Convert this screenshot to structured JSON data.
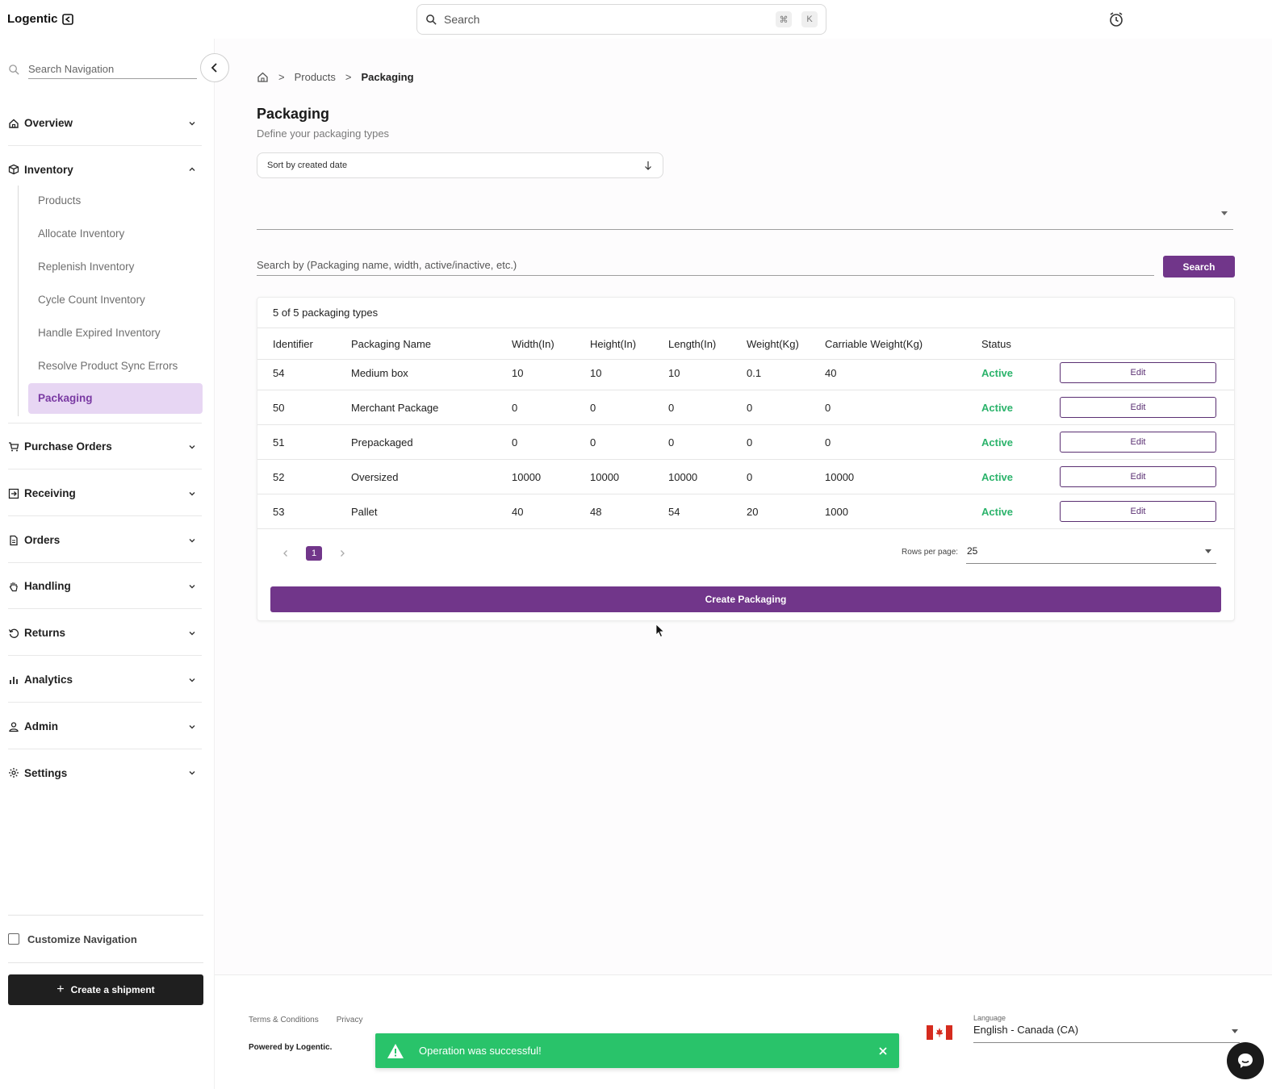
{
  "app": {
    "logo_text": "Logentic"
  },
  "topbar": {
    "search_placeholder": "Search",
    "shortcut_cmd": "⌘",
    "shortcut_key": "K"
  },
  "sidebar": {
    "search_placeholder": "Search Navigation",
    "sections": [
      {
        "label": "Overview",
        "icon": "home-icon",
        "expanded": false
      },
      {
        "label": "Inventory",
        "icon": "box-icon",
        "expanded": true
      },
      {
        "label": "Purchase Orders",
        "icon": "cart-icon",
        "expanded": false
      },
      {
        "label": "Receiving",
        "icon": "receiving-icon",
        "expanded": false
      },
      {
        "label": "Orders",
        "icon": "document-icon",
        "expanded": false
      },
      {
        "label": "Handling",
        "icon": "hand-icon",
        "expanded": false
      },
      {
        "label": "Returns",
        "icon": "return-icon",
        "expanded": false
      },
      {
        "label": "Analytics",
        "icon": "bar-chart-icon",
        "expanded": false
      },
      {
        "label": "Admin",
        "icon": "user-icon",
        "expanded": false
      },
      {
        "label": "Settings",
        "icon": "gear-icon",
        "expanded": false
      }
    ],
    "inventory_items": [
      {
        "label": "Products",
        "active": false
      },
      {
        "label": "Allocate Inventory",
        "active": false
      },
      {
        "label": "Replenish Inventory",
        "active": false
      },
      {
        "label": "Cycle Count Inventory",
        "active": false
      },
      {
        "label": "Handle Expired Inventory",
        "active": false
      },
      {
        "label": "Resolve Product Sync Errors",
        "active": false
      },
      {
        "label": "Packaging",
        "active": true
      }
    ],
    "customize_label": "Customize Navigation",
    "create_shipment_label": "Create a shipment"
  },
  "breadcrumb": {
    "items": [
      "Products",
      "Packaging"
    ],
    "separator": ">"
  },
  "page": {
    "title": "Packaging",
    "subtitle": "Define your packaging types",
    "sort_label": "Sort by created date",
    "search_placeholder": "Search by (Packaging name, width, active/inactive, etc.)",
    "search_button": "Search"
  },
  "table": {
    "count_text": "5 of 5 packaging types",
    "columns": [
      "Identifier",
      "Packaging Name",
      "Width(In)",
      "Height(In)",
      "Length(In)",
      "Weight(Kg)",
      "Carriable Weight(Kg)",
      "Status"
    ],
    "rows": [
      {
        "id": "54",
        "name": "Medium box",
        "width": "10",
        "height": "10",
        "length": "10",
        "weight": "0.1",
        "carriable": "40",
        "status": "Active"
      },
      {
        "id": "50",
        "name": "Merchant Package",
        "width": "0",
        "height": "0",
        "length": "0",
        "weight": "0",
        "carriable": "0",
        "status": "Active"
      },
      {
        "id": "51",
        "name": "Prepackaged",
        "width": "0",
        "height": "0",
        "length": "0",
        "weight": "0",
        "carriable": "0",
        "status": "Active"
      },
      {
        "id": "52",
        "name": "Oversized",
        "width": "10000",
        "height": "10000",
        "length": "10000",
        "weight": "0",
        "carriable": "10000",
        "status": "Active"
      },
      {
        "id": "53",
        "name": "Pallet",
        "width": "40",
        "height": "48",
        "length": "54",
        "weight": "20",
        "carriable": "1000",
        "status": "Active"
      }
    ],
    "edit_label": "Edit",
    "current_page": "1",
    "rows_per_page_label": "Rows per page:",
    "rows_per_page": "25",
    "create_button": "Create Packaging"
  },
  "footer": {
    "links": [
      "Terms & Conditions",
      "Privacy"
    ],
    "powered_by": "Powered by Logentic.",
    "language_label": "Language",
    "language_value": "English - Canada (CA)"
  },
  "toast": {
    "message": "Operation was successful!"
  },
  "colors": {
    "accent": "#71368a",
    "active_nav_bg": "#e7d6f3",
    "status_active": "#2bb36b",
    "toast_bg": "#29c36a"
  }
}
